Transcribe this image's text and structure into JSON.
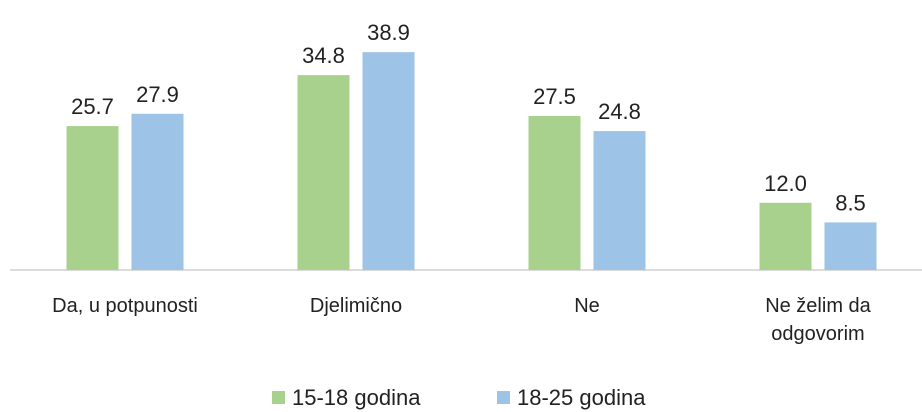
{
  "chart_data": {
    "type": "bar",
    "categories": [
      "Da, u potpunosti",
      "Djelimično",
      "Ne",
      "Ne želim da odgovorim"
    ],
    "series": [
      {
        "name": "15-18 godina",
        "color": "#a9d18e",
        "values": [
          25.7,
          34.8,
          27.5,
          12.0
        ],
        "value_labels": [
          "25.7",
          "34.8",
          "27.5",
          "12.0"
        ]
      },
      {
        "name": "18-25 godina",
        "color": "#9dc3e6",
        "values": [
          27.9,
          38.9,
          24.8,
          8.5
        ]
      }
    ],
    "legend": "bottom"
  }
}
